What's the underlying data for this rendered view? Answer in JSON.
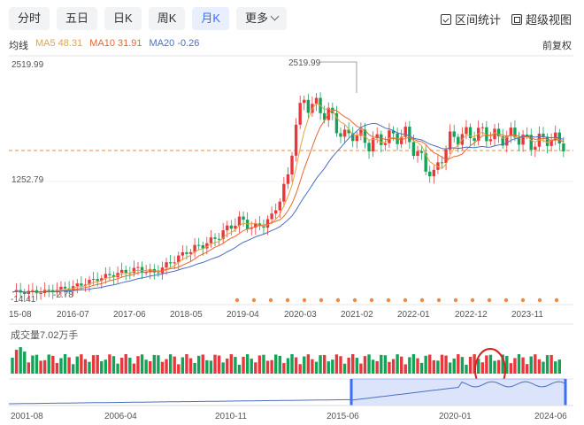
{
  "tabs": [
    {
      "label": "分时",
      "active": false
    },
    {
      "label": "五日",
      "active": false
    },
    {
      "label": "日K",
      "active": false
    },
    {
      "label": "周K",
      "active": false
    },
    {
      "label": "月K",
      "active": true
    },
    {
      "label": "更多",
      "active": false
    }
  ],
  "tools": {
    "interval_label": "区间统计",
    "fullscreen_label": "超级视图"
  },
  "indicators": {
    "title": "均线",
    "ma5": "MA5 48.31",
    "ma10": "MA10 31.91",
    "ma20": "MA20 -0.26"
  },
  "adjust_label": "前复权",
  "price_axis": {
    "top": "2519.99",
    "mid": "1252.79",
    "low1": "-14.41",
    "low2": "-2.78",
    "peak_label": "2519.99"
  },
  "date_axis": [
    "15-08",
    "2016-07",
    "2017-06",
    "2018-05",
    "2019-04",
    "2020-03",
    "2021-02",
    "2022-01",
    "2022-12",
    "2023-11"
  ],
  "volume_label": "成交量7.02万手",
  "overview_axis": [
    "2001-08",
    "2006-04",
    "2010-11",
    "2015-06",
    "2020-01",
    "2024-06"
  ],
  "colors": {
    "up": "#e8383d",
    "down": "#15a35a",
    "ma5": "#e8a33d",
    "ma10": "#e8662f",
    "ma20": "#4c6fbf",
    "active_tab": "#3b6df5",
    "reference_line": "#f08a3e",
    "annotation_circle": "#d9201f"
  }
}
